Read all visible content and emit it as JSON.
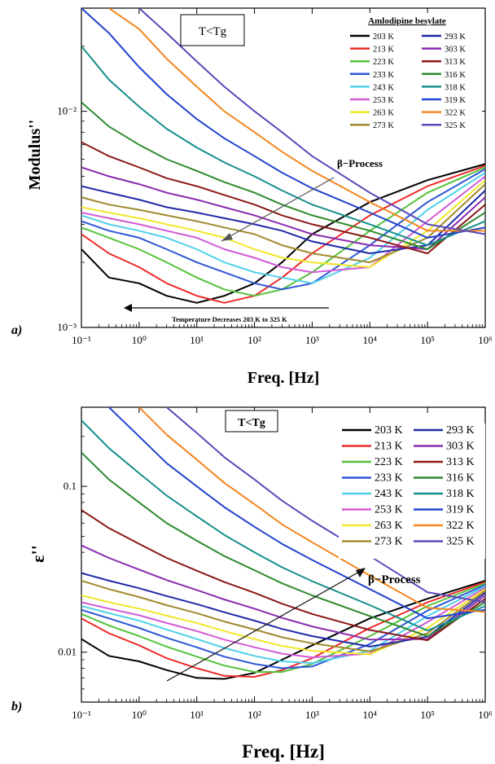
{
  "figure": {
    "panel_a_tag": "a)",
    "panel_b_tag": "b)"
  },
  "series_meta": [
    {
      "name": "203 K",
      "color": "#000000"
    },
    {
      "name": "213 K",
      "color": "#ee2b2b"
    },
    {
      "name": "223 K",
      "color": "#55c23a"
    },
    {
      "name": "233 K",
      "color": "#2f57d6"
    },
    {
      "name": "243 K",
      "color": "#4fd0e8"
    },
    {
      "name": "253 K",
      "color": "#d25ad6"
    },
    {
      "name": "263 K",
      "color": "#efe72a"
    },
    {
      "name": "273 K",
      "color": "#a08a2c"
    },
    {
      "name": "293 K",
      "color": "#1f2aa8"
    },
    {
      "name": "303 K",
      "color": "#8a2bb0"
    },
    {
      "name": "313 K",
      "color": "#8b1818"
    },
    {
      "name": "316 K",
      "color": "#2e8b2e"
    },
    {
      "name": "318 K",
      "color": "#178f8a"
    },
    {
      "name": "319 K",
      "color": "#2244cc"
    },
    {
      "name": "322 K",
      "color": "#f2861f"
    },
    {
      "name": "325 K",
      "color": "#5a4ab8"
    }
  ],
  "chart_data": [
    {
      "type": "line",
      "panel": "a)",
      "title": "",
      "legend_title": "Amlodipine besylate",
      "condition_label": "T<Tg",
      "xlabel": "Freq. [Hz]",
      "ylabel": "Modulus''",
      "x_scale": "log",
      "y_scale": "log",
      "xlim": [
        0.1,
        1000000
      ],
      "ylim": [
        0.001,
        0.03
      ],
      "x_ticks": [
        "10⁻¹",
        "10⁰",
        "10¹",
        "10²",
        "10³",
        "10⁴",
        "10⁵",
        "10⁶"
      ],
      "y_ticks": [
        "10⁻³",
        "10⁻²"
      ],
      "annotations": {
        "process": "β−Process",
        "arrow_note": "Temperature Decreases 203 K  to 325 K"
      },
      "legend_placement": "top-right",
      "series": [
        {
          "name": "203 K",
          "x": [
            0.1,
            0.3,
            1,
            3,
            10,
            30,
            100,
            300,
            1000,
            10000,
            100000,
            1000000
          ],
          "y": [
            0.0023,
            0.0017,
            0.0016,
            0.0014,
            0.0013,
            0.0014,
            0.0016,
            0.002,
            0.0027,
            0.0038,
            0.0048,
            0.0057
          ]
        },
        {
          "name": "213 K",
          "x": [
            0.1,
            0.3,
            1,
            3,
            10,
            30,
            100,
            300,
            1000,
            10000,
            100000,
            1000000
          ],
          "y": [
            0.0027,
            0.0022,
            0.0019,
            0.0016,
            0.0014,
            0.0013,
            0.0014,
            0.0017,
            0.0022,
            0.0033,
            0.0045,
            0.0056
          ]
        },
        {
          "name": "223 K",
          "x": [
            0.1,
            0.3,
            1,
            3,
            10,
            30,
            100,
            300,
            1000,
            10000,
            100000,
            1000000
          ],
          "y": [
            0.0029,
            0.0026,
            0.0023,
            0.002,
            0.0017,
            0.0015,
            0.0014,
            0.0015,
            0.0018,
            0.0028,
            0.0042,
            0.0055
          ]
        },
        {
          "name": "233 K",
          "x": [
            0.1,
            0.3,
            1,
            3,
            10,
            30,
            100,
            300,
            1000,
            10000,
            100000,
            1000000
          ],
          "y": [
            0.0031,
            0.0028,
            0.0026,
            0.0023,
            0.002,
            0.0018,
            0.0016,
            0.0015,
            0.0016,
            0.0024,
            0.0038,
            0.0054
          ]
        },
        {
          "name": "243 K",
          "x": [
            0.1,
            0.3,
            1,
            3,
            10,
            30,
            100,
            300,
            1000,
            10000,
            100000,
            1000000
          ],
          "y": [
            0.0033,
            0.003,
            0.0028,
            0.0026,
            0.0023,
            0.002,
            0.0018,
            0.0017,
            0.0016,
            0.0021,
            0.0035,
            0.0052
          ]
        },
        {
          "name": "253 K",
          "x": [
            0.1,
            0.3,
            1,
            3,
            10,
            30,
            100,
            300,
            1000,
            10000,
            100000,
            1000000
          ],
          "y": [
            0.0034,
            0.0032,
            0.003,
            0.0028,
            0.0026,
            0.0023,
            0.0021,
            0.0019,
            0.0018,
            0.0019,
            0.0031,
            0.005
          ]
        },
        {
          "name": "263 K",
          "x": [
            0.1,
            0.3,
            1,
            3,
            10,
            30,
            100,
            300,
            1000,
            10000,
            100000,
            1000000
          ],
          "y": [
            0.0036,
            0.0034,
            0.0032,
            0.003,
            0.0028,
            0.0026,
            0.0023,
            0.0021,
            0.002,
            0.0019,
            0.0028,
            0.0048
          ]
        },
        {
          "name": "273 K",
          "x": [
            0.1,
            0.3,
            1,
            3,
            10,
            30,
            100,
            300,
            1000,
            10000,
            100000,
            1000000
          ],
          "y": [
            0.004,
            0.0037,
            0.0035,
            0.0033,
            0.0031,
            0.0029,
            0.0027,
            0.0024,
            0.0022,
            0.002,
            0.0026,
            0.0046
          ]
        },
        {
          "name": "293 K",
          "x": [
            0.1,
            0.3,
            1,
            3,
            10,
            30,
            100,
            300,
            1000,
            10000,
            100000,
            1000000
          ],
          "y": [
            0.0045,
            0.0042,
            0.0039,
            0.0036,
            0.0034,
            0.0032,
            0.003,
            0.0028,
            0.0025,
            0.0022,
            0.0024,
            0.0043
          ]
        },
        {
          "name": "303 K",
          "x": [
            0.1,
            0.3,
            1,
            3,
            10,
            30,
            100,
            300,
            1000,
            10000,
            100000,
            1000000
          ],
          "y": [
            0.0055,
            0.005,
            0.0046,
            0.0042,
            0.0039,
            0.0036,
            0.0033,
            0.003,
            0.0027,
            0.0024,
            0.0023,
            0.004
          ]
        },
        {
          "name": "313 K",
          "x": [
            0.1,
            0.3,
            1,
            3,
            10,
            30,
            100,
            300,
            1000,
            10000,
            100000,
            1000000
          ],
          "y": [
            0.0072,
            0.0062,
            0.0055,
            0.0049,
            0.0045,
            0.0041,
            0.0037,
            0.0033,
            0.003,
            0.0026,
            0.0022,
            0.0037
          ]
        },
        {
          "name": "316 K",
          "x": [
            0.1,
            0.3,
            1,
            3,
            10,
            30,
            100,
            300,
            1000,
            10000,
            100000,
            1000000
          ],
          "y": [
            0.011,
            0.0085,
            0.007,
            0.006,
            0.0053,
            0.0047,
            0.0042,
            0.0037,
            0.0033,
            0.0028,
            0.0023,
            0.0034
          ]
        },
        {
          "name": "318 K",
          "x": [
            0.1,
            0.3,
            1,
            3,
            10,
            30,
            100,
            300,
            1000,
            10000,
            100000,
            1000000
          ],
          "y": [
            0.02,
            0.014,
            0.0105,
            0.0083,
            0.0068,
            0.0058,
            0.005,
            0.0043,
            0.0037,
            0.003,
            0.0024,
            0.0031
          ]
        },
        {
          "name": "319 K",
          "x": [
            0.1,
            0.3,
            1,
            3,
            10,
            30,
            100,
            300,
            1000,
            10000,
            100000,
            1000000
          ],
          "y": [
            0.03,
            0.023,
            0.016,
            0.012,
            0.0092,
            0.0075,
            0.0062,
            0.0052,
            0.0044,
            0.0034,
            0.0026,
            0.0029
          ]
        },
        {
          "name": "322 K",
          "x": [
            0.3,
            1,
            3,
            10,
            30,
            100,
            300,
            1000,
            10000,
            100000,
            1000000
          ],
          "y": [
            0.03,
            0.024,
            0.0175,
            0.013,
            0.01,
            0.008,
            0.0065,
            0.0053,
            0.0038,
            0.0028,
            0.0028
          ]
        },
        {
          "name": "325 K",
          "x": [
            1,
            3,
            10,
            30,
            100,
            300,
            1000,
            10000,
            100000,
            1000000
          ],
          "y": [
            0.03,
            0.023,
            0.017,
            0.013,
            0.01,
            0.008,
            0.0062,
            0.0042,
            0.003,
            0.0027
          ]
        }
      ]
    },
    {
      "type": "line",
      "panel": "b)",
      "title": "",
      "condition_label": "T<Tg",
      "xlabel": "Freq. [Hz]",
      "ylabel": "ε''",
      "x_scale": "log",
      "y_scale": "log",
      "xlim": [
        0.1,
        1000000
      ],
      "ylim": [
        0.005,
        0.3
      ],
      "x_ticks": [
        "10⁻¹",
        "10⁰",
        "10¹",
        "10²",
        "10³",
        "10⁴",
        "10⁵",
        "10⁶"
      ],
      "y_ticks": [
        "0.01",
        "0.1"
      ],
      "annotations": {
        "process": "β−Process"
      },
      "legend_placement": "top-right",
      "series": [
        {
          "name": "203 K",
          "x": [
            0.1,
            0.3,
            1,
            3,
            10,
            30,
            100,
            300,
            1000,
            10000,
            100000,
            1000000
          ],
          "y": [
            0.012,
            0.0095,
            0.0088,
            0.0078,
            0.007,
            0.0069,
            0.0075,
            0.009,
            0.011,
            0.016,
            0.021,
            0.027
          ]
        },
        {
          "name": "213 K",
          "x": [
            0.1,
            0.3,
            1,
            3,
            10,
            30,
            100,
            300,
            1000,
            10000,
            100000,
            1000000
          ],
          "y": [
            0.016,
            0.013,
            0.011,
            0.0092,
            0.008,
            0.0072,
            0.0071,
            0.0078,
            0.0092,
            0.014,
            0.02,
            0.0265
          ]
        },
        {
          "name": "223 K",
          "x": [
            0.1,
            0.3,
            1,
            3,
            10,
            30,
            100,
            300,
            1000,
            10000,
            100000,
            1000000
          ],
          "y": [
            0.017,
            0.0145,
            0.0125,
            0.0108,
            0.0094,
            0.0083,
            0.0076,
            0.0076,
            0.0085,
            0.0125,
            0.019,
            0.026
          ]
        },
        {
          "name": "233 K",
          "x": [
            0.1,
            0.3,
            1,
            3,
            10,
            30,
            100,
            300,
            1000,
            10000,
            100000,
            1000000
          ],
          "y": [
            0.018,
            0.016,
            0.014,
            0.0122,
            0.0107,
            0.0094,
            0.0085,
            0.008,
            0.0082,
            0.0112,
            0.0178,
            0.0255
          ]
        },
        {
          "name": "243 K",
          "x": [
            0.1,
            0.3,
            1,
            3,
            10,
            30,
            100,
            300,
            1000,
            10000,
            100000,
            1000000
          ],
          "y": [
            0.019,
            0.0172,
            0.0155,
            0.0137,
            0.012,
            0.0106,
            0.0095,
            0.0088,
            0.0086,
            0.0102,
            0.0165,
            0.025
          ]
        },
        {
          "name": "253 K",
          "x": [
            0.1,
            0.3,
            1,
            3,
            10,
            30,
            100,
            300,
            1000,
            10000,
            100000,
            1000000
          ],
          "y": [
            0.02,
            0.0183,
            0.0167,
            0.015,
            0.0134,
            0.0119,
            0.0107,
            0.0098,
            0.0093,
            0.0098,
            0.0152,
            0.0245
          ]
        },
        {
          "name": "263 K",
          "x": [
            0.1,
            0.3,
            1,
            3,
            10,
            30,
            100,
            300,
            1000,
            10000,
            100000,
            1000000
          ],
          "y": [
            0.022,
            0.02,
            0.0183,
            0.0166,
            0.015,
            0.0134,
            0.012,
            0.0109,
            0.0102,
            0.0097,
            0.014,
            0.024
          ]
        },
        {
          "name": "273 K",
          "x": [
            0.1,
            0.3,
            1,
            3,
            10,
            30,
            100,
            300,
            1000,
            10000,
            100000,
            1000000
          ],
          "y": [
            0.027,
            0.024,
            0.0215,
            0.0192,
            0.0172,
            0.0153,
            0.0137,
            0.0123,
            0.0113,
            0.0101,
            0.013,
            0.0235
          ]
        },
        {
          "name": "293 K",
          "x": [
            0.1,
            0.3,
            1,
            3,
            10,
            30,
            100,
            300,
            1000,
            10000,
            100000,
            1000000
          ],
          "y": [
            0.03,
            0.027,
            0.0243,
            0.0218,
            0.0195,
            0.0174,
            0.0155,
            0.0138,
            0.0125,
            0.0108,
            0.0124,
            0.0228
          ]
        },
        {
          "name": "303 K",
          "x": [
            0.1,
            0.3,
            1,
            3,
            10,
            30,
            100,
            300,
            1000,
            10000,
            100000,
            1000000
          ],
          "y": [
            0.044,
            0.037,
            0.0315,
            0.0272,
            0.0237,
            0.0208,
            0.0183,
            0.0161,
            0.0143,
            0.0119,
            0.012,
            0.022
          ]
        },
        {
          "name": "313 K",
          "x": [
            0.1,
            0.3,
            1,
            3,
            10,
            30,
            100,
            300,
            1000,
            10000,
            100000,
            1000000
          ],
          "y": [
            0.072,
            0.056,
            0.045,
            0.037,
            0.031,
            0.0265,
            0.0228,
            0.0196,
            0.017,
            0.0136,
            0.0118,
            0.021
          ]
        },
        {
          "name": "316 K",
          "x": [
            0.1,
            0.3,
            1,
            3,
            10,
            30,
            100,
            300,
            1000,
            10000,
            100000,
            1000000
          ],
          "y": [
            0.16,
            0.11,
            0.08,
            0.06,
            0.047,
            0.038,
            0.0312,
            0.026,
            0.022,
            0.0165,
            0.0125,
            0.02
          ]
        },
        {
          "name": "318 K",
          "x": [
            0.1,
            0.3,
            1,
            3,
            10,
            30,
            100,
            300,
            1000,
            10000,
            100000,
            1000000
          ],
          "y": [
            0.25,
            0.17,
            0.12,
            0.088,
            0.066,
            0.051,
            0.04,
            0.0325,
            0.0268,
            0.0192,
            0.0135,
            0.019
          ]
        },
        {
          "name": "319 K",
          "x": [
            0.3,
            1,
            3,
            10,
            30,
            100,
            300,
            1000,
            10000,
            100000,
            1000000
          ],
          "y": [
            0.3,
            0.2,
            0.138,
            0.1,
            0.075,
            0.057,
            0.045,
            0.036,
            0.024,
            0.016,
            0.018
          ]
        },
        {
          "name": "322 K",
          "x": [
            1,
            3,
            10,
            30,
            100,
            300,
            1000,
            10000,
            100000,
            1000000
          ],
          "y": [
            0.3,
            0.205,
            0.145,
            0.105,
            0.078,
            0.059,
            0.046,
            0.029,
            0.0185,
            0.0175
          ]
        },
        {
          "name": "325 K",
          "x": [
            3,
            10,
            30,
            100,
            300,
            1000,
            10000,
            100000,
            1000000
          ],
          "y": [
            0.3,
            0.21,
            0.15,
            0.11,
            0.082,
            0.062,
            0.038,
            0.023,
            0.02
          ]
        }
      ]
    }
  ]
}
